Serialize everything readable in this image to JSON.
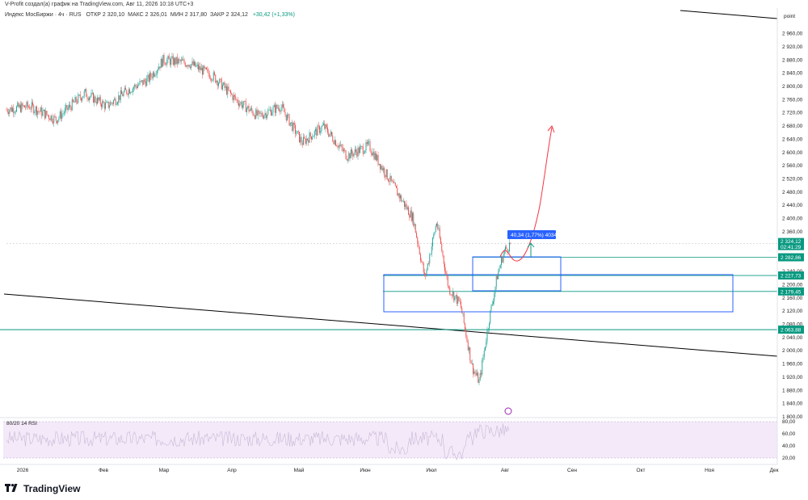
{
  "header": {
    "author_line": "V-Profit создал(а) график на TradingView.com, Авг 11, 2026 10:18 UTC+3",
    "symbol_line": "Индекс МосБиржи · 4ч · RUS",
    "ohlc": [
      {
        "label": "ОТКР",
        "value": "2 320,10"
      },
      {
        "label": "МАКС",
        "value": "2 326,01"
      },
      {
        "label": "МИН",
        "value": "2 317,80"
      },
      {
        "label": "ЗАКР",
        "value": "2 324,12"
      }
    ],
    "change": "+30,42 (+1,33%)"
  },
  "branding": {
    "logo_text": "TradingView"
  },
  "colors": {
    "up": "#26a69a",
    "down": "#ef5350",
    "box": "#2962ff",
    "level": "#089981",
    "trend": "#000000",
    "forecast": "#f23645",
    "rsi_band": "#f3e9f8",
    "measure": "#2962ff"
  },
  "chart_data": {
    "type": "candlestick",
    "timeframe": "4ч",
    "x_tick_labels": [
      "2026",
      "Фев",
      "Мар",
      "Апр",
      "Май",
      "Июн",
      "Июл",
      "Авг",
      "Сен",
      "Окт",
      "Ноя",
      "Дек"
    ],
    "ylim": [
      1800,
      3000
    ],
    "y_tick_labels": [
      "2 960,00",
      "2 920,00",
      "2 880,00",
      "2 840,00",
      "2 800,00",
      "2 760,00",
      "2 720,00",
      "2 680,00",
      "2 640,00",
      "2 600,00",
      "2 560,00",
      "2 520,00",
      "2 480,00",
      "2 440,00",
      "2 400,00",
      "2 360,00",
      "2 240,00",
      "2 200,00",
      "2 160,00",
      "2 120,00",
      "2 080,00",
      "2 040,00",
      "2 000,00",
      "1 960,00",
      "1 920,00",
      "1 880,00",
      "1 840,00",
      "1 800,00"
    ],
    "y_tick_values": [
      2960,
      2920,
      2880,
      2840,
      2800,
      2760,
      2720,
      2680,
      2640,
      2600,
      2560,
      2520,
      2480,
      2440,
      2400,
      2360,
      2240,
      2200,
      2160,
      2120,
      2080,
      2040,
      2000,
      1960,
      1920,
      1880,
      1840,
      1800
    ],
    "price_path": [
      [
        "2026-01-01",
        2730
      ],
      [
        "2026-01-10",
        2740
      ],
      [
        "2026-01-20",
        2700
      ],
      [
        "2026-01-31",
        2780
      ],
      [
        "2026-02-10",
        2740
      ],
      [
        "2026-02-20",
        2790
      ],
      [
        "2026-03-01",
        2820
      ],
      [
        "2026-03-08",
        2880
      ],
      [
        "2026-03-20",
        2870
      ],
      [
        "2026-03-31",
        2830
      ],
      [
        "2026-04-10",
        2760
      ],
      [
        "2026-04-20",
        2710
      ],
      [
        "2026-04-30",
        2740
      ],
      [
        "2026-05-10",
        2630
      ],
      [
        "2026-05-20",
        2680
      ],
      [
        "2026-05-31",
        2590
      ],
      [
        "2026-06-10",
        2620
      ],
      [
        "2026-06-20",
        2510
      ],
      [
        "2026-06-30",
        2400
      ],
      [
        "2026-07-05",
        2220
      ],
      [
        "2026-07-10",
        2390
      ],
      [
        "2026-07-15",
        2190
      ],
      [
        "2026-07-20",
        2140
      ],
      [
        "2026-07-25",
        1950
      ],
      [
        "2026-07-28",
        1905
      ],
      [
        "2026-08-01",
        2090
      ],
      [
        "2026-08-05",
        2230
      ],
      [
        "2026-08-08",
        2300
      ],
      [
        "2026-08-11",
        2324
      ]
    ],
    "horizontal_levels": [
      {
        "value": 2282.86,
        "label": "2 282,86"
      },
      {
        "value": 2227.73,
        "label": "2 227,73"
      },
      {
        "value": 2179.45,
        "label": "2 179,45"
      },
      {
        "value": 2063.88,
        "label": "2 063,88"
      }
    ],
    "last_price": {
      "label": "2 324,12",
      "countdown": "02:41:29",
      "value": 2324.12
    },
    "measure_label": "40,34 (1,77%) 4034",
    "rsi": {
      "label": "80/20 14 RSI",
      "y_tick_labels": [
        "80,00",
        "60,00",
        "40,00",
        "20,00"
      ],
      "ylim": [
        20,
        80
      ]
    },
    "top_right_tag": "point",
    "grid": false,
    "legend": "none"
  }
}
